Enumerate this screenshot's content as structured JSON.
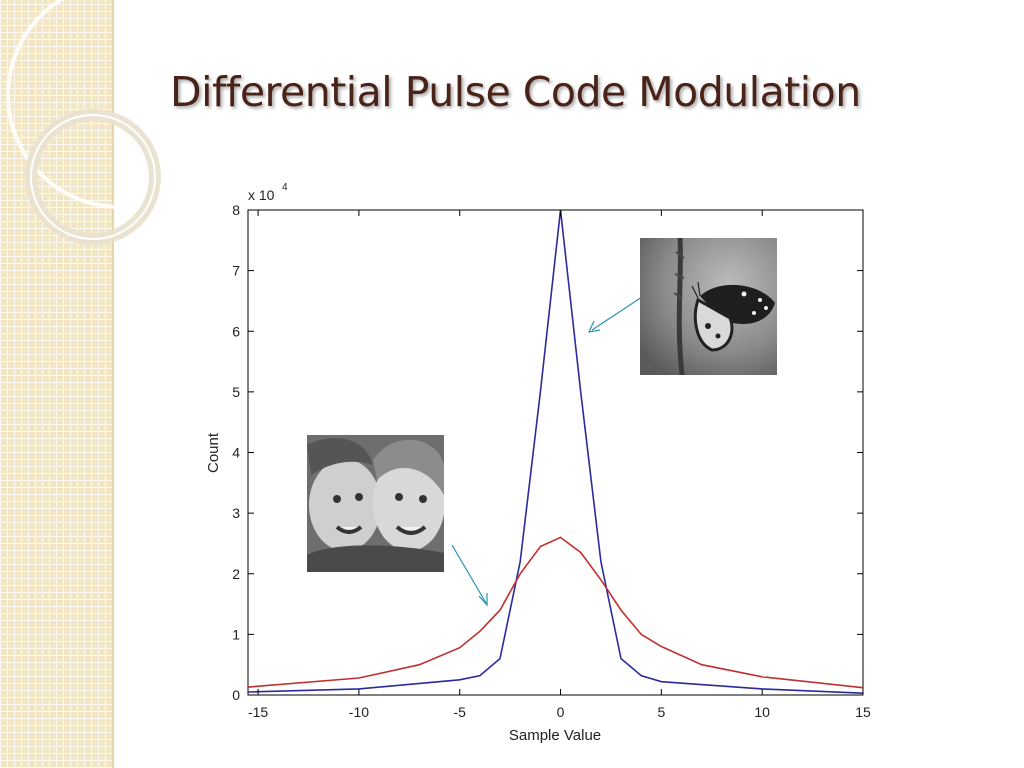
{
  "slide": {
    "title": "Differential Pulse Code Modulation"
  },
  "colors": {
    "title": "#4a2318",
    "sidebar": "#f3e6c4",
    "arrow": "#2a8fb0"
  },
  "images": {
    "butterfly": "butterfly-photo",
    "children": "children-photo"
  },
  "chart_data": {
    "type": "line",
    "title": "",
    "xlabel": "Sample Value",
    "ylabel": "Count",
    "exponent_label": "x 10",
    "exponent_power": "4",
    "xlim": [
      -15.5,
      15
    ],
    "ylim": [
      0,
      80000
    ],
    "xticks": [
      -15,
      -10,
      -5,
      0,
      5,
      10,
      15
    ],
    "yticks": [
      0,
      10000,
      20000,
      30000,
      40000,
      50000,
      60000,
      70000,
      80000
    ],
    "ytick_labels": [
      "0",
      "1",
      "2",
      "3",
      "4",
      "5",
      "6",
      "7",
      "8"
    ],
    "grid": false,
    "series": [
      {
        "color": "#2b2b9e",
        "x": [
          -15.5,
          -10,
          -5,
          -4,
          -3,
          -2,
          -1,
          0,
          1,
          2,
          3,
          4,
          5,
          10,
          15
        ],
        "y": [
          500,
          1000,
          2500,
          3200,
          6000,
          22000,
          50000,
          80000,
          50000,
          22000,
          6000,
          3200,
          2200,
          1000,
          300
        ]
      },
      {
        "color": "#c0302f",
        "x": [
          -15.5,
          -10,
          -7,
          -5,
          -4,
          -3,
          -2,
          -1,
          0,
          1,
          2,
          3,
          4,
          5,
          7,
          10,
          15
        ],
        "y": [
          1300,
          2800,
          5000,
          7800,
          10500,
          14000,
          20000,
          24500,
          26000,
          23500,
          19000,
          14000,
          10000,
          8000,
          5000,
          3000,
          1200
        ]
      }
    ]
  }
}
